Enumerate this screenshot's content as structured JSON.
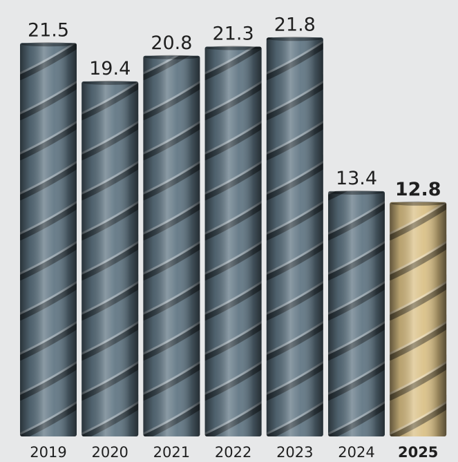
{
  "chart_data": {
    "type": "bar",
    "categories": [
      "2019",
      "2020",
      "2021",
      "2022",
      "2023",
      "2024",
      "2025"
    ],
    "values": [
      21.5,
      19.4,
      20.8,
      21.3,
      21.8,
      13.4,
      12.8
    ],
    "colors": [
      "#5d7381",
      "#5d7381",
      "#5d7381",
      "#5d7381",
      "#5d7381",
      "#5d7381",
      "#d9bf84"
    ]
  }
}
